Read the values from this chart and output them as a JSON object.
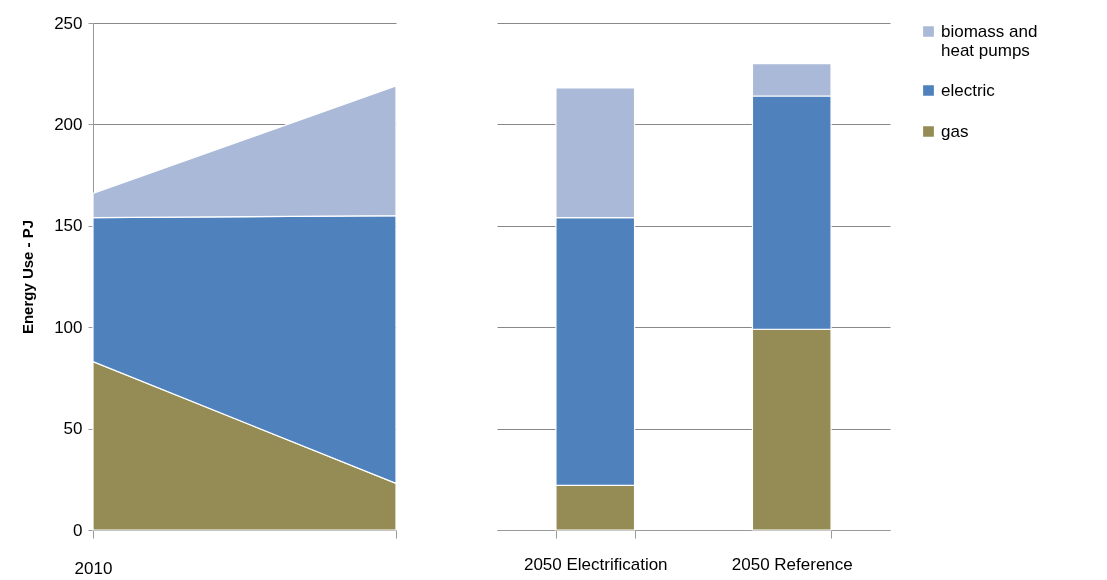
{
  "chart_data": [
    {
      "type": "area",
      "stacked": true,
      "ylabel": "Energy Use - PJ",
      "categories": [
        "2010",
        null
      ],
      "ylim": [
        0,
        250
      ],
      "yticks": [
        0,
        50,
        100,
        150,
        200,
        250
      ],
      "grid": "y",
      "legend": "right",
      "series": [
        {
          "name": "gas",
          "color": "#948c54",
          "values": [
            83,
            23
          ]
        },
        {
          "name": "electric",
          "color": "#4f81bd",
          "values": [
            71,
            132
          ]
        },
        {
          "name": "biomass and heat pumps",
          "color": "#aab9d7",
          "values": [
            12,
            64
          ]
        }
      ]
    },
    {
      "type": "bar",
      "stacked": true,
      "categories": [
        "2050 Electrification",
        "2050 Reference"
      ],
      "ylim": [
        0,
        250
      ],
      "yticks": [
        0,
        50,
        100,
        150,
        200,
        250
      ],
      "grid": "y",
      "legend": "right",
      "tick_labels": "x",
      "series": [
        {
          "name": "gas",
          "color": "#948c54",
          "values": [
            22,
            99
          ]
        },
        {
          "name": "electric",
          "color": "#4f81bd",
          "values": [
            132,
            115
          ]
        },
        {
          "name": "biomass and heat pumps",
          "color": "#aab9d7",
          "values": [
            64,
            16
          ]
        }
      ]
    }
  ]
}
